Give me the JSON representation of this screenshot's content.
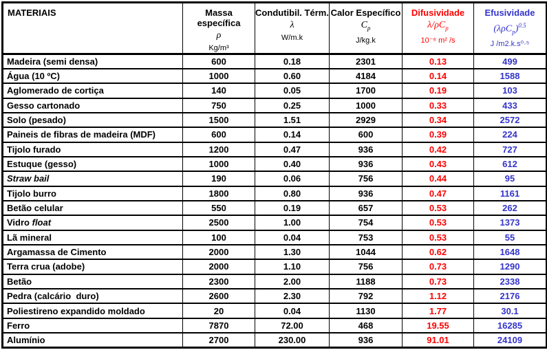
{
  "table": {
    "corner_header": "MATERIAIS",
    "accent_colors": {
      "diffusivity": "#FF0000",
      "effusivity": "#3333CC",
      "text": "#000000",
      "grid": "#000000"
    },
    "columns": [
      {
        "name": "Massa específica",
        "symbol": [
          {
            "t": "ρ"
          }
        ],
        "unit": "Kg/m³"
      },
      {
        "name": "Condutibil. Térm.",
        "symbol": [
          {
            "t": "λ"
          }
        ],
        "unit": "W/m.k"
      },
      {
        "name": "Calor Específico",
        "symbol": [
          {
            "t": "C"
          },
          {
            "t": "p",
            "type": "sub"
          }
        ],
        "unit": "J/kg.k"
      },
      {
        "name": "Difusividade",
        "symbol": [
          {
            "t": "λ/ρC"
          },
          {
            "t": "p",
            "type": "sub"
          }
        ],
        "unit": "10⁻⁶ m² /s"
      },
      {
        "name": "Efusividade",
        "symbol": [
          {
            "t": "(λρC"
          },
          {
            "t": "p",
            "type": "sub"
          },
          {
            "t": ")"
          },
          {
            "t": "0.5",
            "type": "sup"
          }
        ],
        "unit": "J /m2.k.s⁰·⁵"
      }
    ],
    "rows": [
      {
        "material": [
          {
            "t": "Madeira (semi densa)"
          }
        ],
        "values": [
          "600",
          "0.18",
          "2301",
          "0.13",
          "499"
        ]
      },
      {
        "material": [
          {
            "t": "Água (10 ºC)"
          }
        ],
        "values": [
          "1000",
          "0.60",
          "4184",
          "0.14",
          "1588"
        ]
      },
      {
        "material": [
          {
            "t": "Aglomerado de cortiça"
          }
        ],
        "values": [
          "140",
          "0.05",
          "1700",
          "0.19",
          "103"
        ]
      },
      {
        "material": [
          {
            "t": "Gesso cartonado"
          }
        ],
        "values": [
          "750",
          "0.25",
          "1000",
          "0.33",
          "433"
        ]
      },
      {
        "material": [
          {
            "t": "Solo (pesado)"
          }
        ],
        "values": [
          "1500",
          "1.51",
          "2929",
          "0.34",
          "2572"
        ]
      },
      {
        "material": [
          {
            "t": "Paineis de fibras de madeira (MDF)"
          }
        ],
        "values": [
          "600",
          "0.14",
          "600",
          "0.39",
          "224"
        ]
      },
      {
        "material": [
          {
            "t": "Tijolo furado"
          }
        ],
        "values": [
          "1200",
          "0.47",
          "936",
          "0.42",
          "727"
        ]
      },
      {
        "material": [
          {
            "t": "Estuque (gesso)"
          }
        ],
        "values": [
          "1000",
          "0.40",
          "936",
          "0.43",
          "612"
        ]
      },
      {
        "material": [
          {
            "t": "Straw bail",
            "type": "italic"
          }
        ],
        "values": [
          "190",
          "0.06",
          "756",
          "0.44",
          "95"
        ]
      },
      {
        "material": [
          {
            "t": "Tijolo burro"
          }
        ],
        "values": [
          "1800",
          "0.80",
          "936",
          "0.47",
          "1161"
        ]
      },
      {
        "material": [
          {
            "t": "Betão celular"
          }
        ],
        "values": [
          "550",
          "0.19",
          "657",
          "0.53",
          "262"
        ]
      },
      {
        "material": [
          {
            "t": "Vidro "
          },
          {
            "t": "float",
            "type": "italic"
          }
        ],
        "values": [
          "2500",
          "1.00",
          "754",
          "0.53",
          "1373"
        ]
      },
      {
        "material": [
          {
            "t": "Lã mineral"
          }
        ],
        "values": [
          "100",
          "0.04",
          "753",
          "0.53",
          "55"
        ]
      },
      {
        "material": [
          {
            "t": "Argamassa de Cimento"
          }
        ],
        "values": [
          "2000",
          "1.30",
          "1044",
          "0.62",
          "1648"
        ]
      },
      {
        "material": [
          {
            "t": "Terra crua (adobe)"
          }
        ],
        "values": [
          "2000",
          "1.10",
          "756",
          "0.73",
          "1290"
        ]
      },
      {
        "material": [
          {
            "t": "Betão"
          }
        ],
        "values": [
          "2300",
          "2.00",
          "1188",
          "0.73",
          "2338"
        ]
      },
      {
        "material": [
          {
            "t": "Pedra (calcário  duro)"
          }
        ],
        "values": [
          "2600",
          "2.30",
          "792",
          "1.12",
          "2176"
        ]
      },
      {
        "material": [
          {
            "t": "Poliestireno expandido moldado"
          }
        ],
        "values": [
          "20",
          "0.04",
          "1130",
          "1.77",
          "30.1"
        ]
      },
      {
        "material": [
          {
            "t": "Ferro"
          }
        ],
        "values": [
          "7870",
          "72.00",
          "468",
          "19.55",
          "16285"
        ]
      },
      {
        "material": [
          {
            "t": "Alumínio"
          }
        ],
        "values": [
          "2700",
          "230.00",
          "936",
          "91.01",
          "24109"
        ]
      }
    ]
  }
}
